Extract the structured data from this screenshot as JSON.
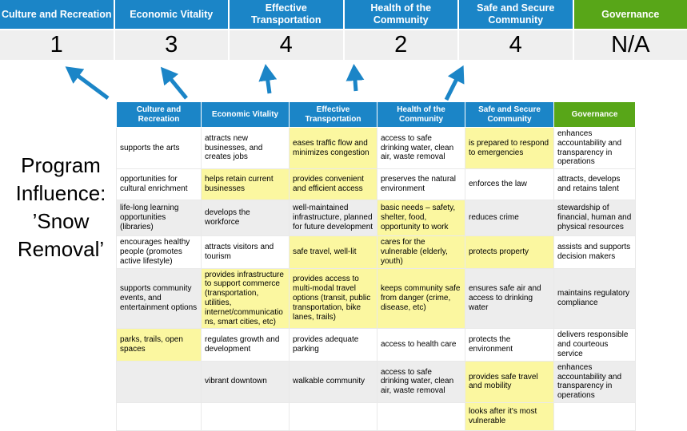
{
  "title": "Program Influence: ’Snow Removal’",
  "colors": {
    "header_blue": "#1b85c7",
    "header_green": "#58a618",
    "highlight_yellow": "#fbf7a0",
    "row_band_gray": "#ededed",
    "score_row_gray": "#efefef",
    "arrow_blue": "#1b85c7"
  },
  "banner": {
    "columns": [
      {
        "label": "Culture and Recreation",
        "score": "1",
        "type": "blue"
      },
      {
        "label": "Economic Vitality",
        "score": "3",
        "type": "blue"
      },
      {
        "label": "Effective Transportation",
        "score": "4",
        "type": "blue"
      },
      {
        "label": "Health of the Community",
        "score": "2",
        "type": "blue"
      },
      {
        "label": "Safe and Secure Community",
        "score": "4",
        "type": "blue"
      },
      {
        "label": "Governance",
        "score": "N/A",
        "type": "green"
      }
    ]
  },
  "matrix": {
    "header": [
      "Culture and Recreation",
      "Economic Vitality",
      "Effective Transportation",
      "Health of the Community",
      "Safe and Secure Community",
      "Governance"
    ],
    "rows": [
      {
        "shaded": false,
        "cells": [
          {
            "text": "supports the arts",
            "highlight": false
          },
          {
            "text": "attracts new businesses, and creates jobs",
            "highlight": false
          },
          {
            "text": "eases traffic flow and minimizes congestion",
            "highlight": true
          },
          {
            "text": "access to safe drinking water, clean air, waste removal",
            "highlight": false
          },
          {
            "text": "is prepared to respond to emergencies",
            "highlight": true
          },
          {
            "text": "enhances accountability and transparency in operations",
            "highlight": false
          }
        ]
      },
      {
        "shaded": false,
        "cells": [
          {
            "text": "opportunities for cultural enrichment",
            "highlight": false
          },
          {
            "text": "helps retain current businesses",
            "highlight": true
          },
          {
            "text": "provides convenient and efficient access",
            "highlight": true
          },
          {
            "text": "preserves the natural environment",
            "highlight": false
          },
          {
            "text": "enforces the law",
            "highlight": false
          },
          {
            "text": "attracts, develops and retains talent",
            "highlight": false
          }
        ]
      },
      {
        "shaded": true,
        "cells": [
          {
            "text": "life-long learning opportunities (libraries)",
            "highlight": false
          },
          {
            "text": "develops the workforce",
            "highlight": false
          },
          {
            "text": "well-maintained infrastructure, planned for future development",
            "highlight": false
          },
          {
            "text": "basic needs – safety, shelter, food, opportunity to work",
            "highlight": true
          },
          {
            "text": "reduces crime",
            "highlight": false
          },
          {
            "text": "stewardship of financial, human and physical resources",
            "highlight": false
          }
        ]
      },
      {
        "shaded": false,
        "cells": [
          {
            "text": "encourages healthy people (promotes active lifestyle)",
            "highlight": false
          },
          {
            "text": "attracts visitors and tourism",
            "highlight": false
          },
          {
            "text": "safe travel, well-lit",
            "highlight": true
          },
          {
            "text": "cares for the vulnerable (elderly, youth)",
            "highlight": true
          },
          {
            "text": "protects property",
            "highlight": true
          },
          {
            "text": "assists and supports decision makers",
            "highlight": false
          }
        ]
      },
      {
        "shaded": true,
        "cells": [
          {
            "text": "supports community events, and entertainment options",
            "highlight": false
          },
          {
            "text": "provides infrastructure to support commerce (transportation, utilities, internet/communications, smart cities, etc)",
            "highlight": true
          },
          {
            "text": "provides access to multi-modal travel options (transit, public transportation, bike lanes, trails)",
            "highlight": true
          },
          {
            "text": "keeps community safe from danger (crime, disease, etc)",
            "highlight": true
          },
          {
            "text": "ensures safe air and access to drinking water",
            "highlight": false
          },
          {
            "text": "maintains regulatory compliance",
            "highlight": false
          }
        ]
      },
      {
        "shaded": false,
        "cells": [
          {
            "text": "parks, trails, open spaces",
            "highlight": true
          },
          {
            "text": "regulates growth and development",
            "highlight": false
          },
          {
            "text": "provides adequate parking",
            "highlight": false
          },
          {
            "text": "access to health care",
            "highlight": false
          },
          {
            "text": "protects the environment",
            "highlight": false
          },
          {
            "text": "delivers responsible and courteous service",
            "highlight": false
          }
        ]
      },
      {
        "shaded": true,
        "cells": [
          {
            "text": "",
            "highlight": false
          },
          {
            "text": "vibrant downtown",
            "highlight": false
          },
          {
            "text": "walkable community",
            "highlight": false
          },
          {
            "text": "access to safe drinking water, clean air, waste removal",
            "highlight": false
          },
          {
            "text": "provides safe travel and mobility",
            "highlight": true
          },
          {
            "text": "enhances accountability and transparency in operations",
            "highlight": false
          }
        ]
      },
      {
        "shaded": false,
        "cells": [
          {
            "text": "",
            "highlight": false
          },
          {
            "text": "",
            "highlight": false
          },
          {
            "text": "",
            "highlight": false
          },
          {
            "text": "",
            "highlight": false
          },
          {
            "text": "looks after it's most vulnerable",
            "highlight": true
          },
          {
            "text": "",
            "highlight": false
          }
        ]
      }
    ]
  }
}
